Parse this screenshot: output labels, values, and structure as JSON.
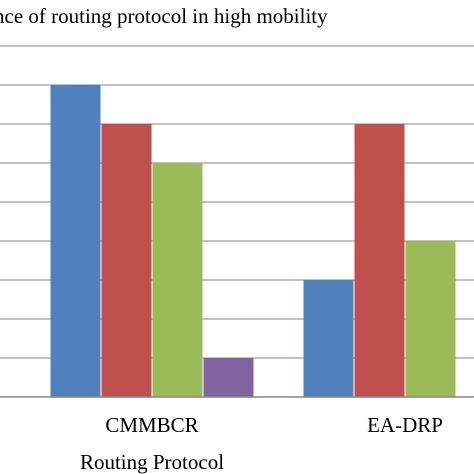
{
  "chart_data": {
    "type": "bar",
    "title": "nce of routing protocol in high mobility",
    "xlabel": "Routing Protocol",
    "ylabel": "",
    "categories": [
      "CMMBCR",
      "EA-DRP"
    ],
    "series": [
      {
        "color": "#4f81bd",
        "values": [
          8,
          3
        ]
      },
      {
        "color": "#c0504d",
        "values": [
          7,
          7
        ]
      },
      {
        "color": "#9bbb59",
        "values": [
          6,
          4
        ]
      },
      {
        "color": "#8064a2",
        "values": [
          1,
          null
        ]
      }
    ],
    "ylim": [
      0,
      9
    ],
    "grid": true,
    "legend": "none"
  }
}
